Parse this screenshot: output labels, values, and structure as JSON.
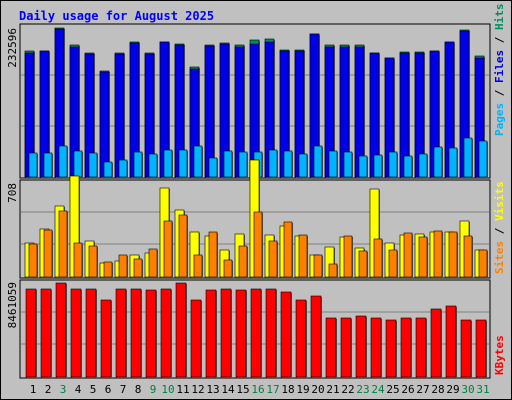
{
  "chart_data": [
    {
      "type": "bar",
      "title": "Daily usage for August 2025",
      "y_tick_label": "232596",
      "legend": {
        "pages": "Pages",
        "files": "Files",
        "hits": "Hits",
        "separator": " / "
      },
      "categories": [
        "1",
        "2",
        "3",
        "4",
        "5",
        "6",
        "7",
        "8",
        "9",
        "10",
        "11",
        "12",
        "13",
        "14",
        "15",
        "16",
        "17",
        "18",
        "19",
        "20",
        "21",
        "22",
        "23",
        "24",
        "25",
        "26",
        "27",
        "28",
        "29",
        "30",
        "31"
      ],
      "weekend_days": [
        "3",
        "9",
        "10",
        "16",
        "17",
        "23",
        "24",
        "30",
        "31"
      ],
      "series": [
        {
          "name": "Hits",
          "values": [
            195000,
            196000,
            231000,
            204000,
            192000,
            164000,
            192000,
            209000,
            193000,
            210000,
            206000,
            170000,
            205000,
            208000,
            204000,
            212000,
            214000,
            197000,
            197000,
            222000,
            204000,
            205000,
            204000,
            193000,
            185000,
            194000,
            194000,
            196000,
            210000,
            228000,
            187000
          ]
        },
        {
          "name": "Files",
          "values": [
            193000,
            195000,
            230000,
            202000,
            191000,
            163000,
            191000,
            208000,
            191000,
            209000,
            205000,
            168000,
            203000,
            206000,
            202000,
            206000,
            209000,
            195000,
            195000,
            221000,
            202000,
            201000,
            201000,
            192000,
            184000,
            193000,
            193000,
            195000,
            209000,
            227000,
            185000
          ]
        },
        {
          "name": "Pages",
          "values": [
            37000,
            37000,
            48000,
            41000,
            37000,
            23000,
            26000,
            39000,
            36000,
            42000,
            42000,
            48000,
            29000,
            40000,
            38000,
            38000,
            42000,
            41000,
            35000,
            48000,
            41000,
            39000,
            33000,
            34000,
            39000,
            33000,
            36000,
            46000,
            45000,
            60000,
            56000
          ]
        }
      ],
      "colors": {
        "Hits": "#009060",
        "Files": "#0000e6",
        "Pages": "#00b4ff"
      }
    },
    {
      "type": "bar",
      "y_tick_label": "708",
      "legend": {
        "sites": "Sites",
        "visits": "Visits",
        "separator": " / "
      },
      "categories": [
        "1",
        "2",
        "3",
        "4",
        "5",
        "6",
        "7",
        "8",
        "9",
        "10",
        "11",
        "12",
        "13",
        "14",
        "15",
        "16",
        "17",
        "18",
        "19",
        "20",
        "21",
        "22",
        "23",
        "24",
        "25",
        "26",
        "27",
        "28",
        "29",
        "30",
        "31"
      ],
      "series": [
        {
          "name": "Visits",
          "values": [
            253,
            365,
            537,
            761,
            268,
            108,
            117,
            168,
            184,
            668,
            503,
            342,
            311,
            204,
            322,
            884,
            319,
            386,
            309,
            166,
            223,
            301,
            221,
            664,
            259,
            320,
            322,
            340,
            340,
            425,
            203
          ]
        },
        {
          "name": "Sites",
          "values": [
            247,
            351,
            500,
            256,
            230,
            111,
            165,
            134,
            210,
            422,
            470,
            162,
            336,
            129,
            230,
            491,
            270,
            414,
            319,
            166,
            95,
            310,
            197,
            288,
            205,
            335,
            304,
            345,
            340,
            310,
            200
          ]
        }
      ],
      "colors": {
        "Visits": "#ffff00",
        "Sites": "#ff8000"
      }
    },
    {
      "type": "bar",
      "y_tick_label": "8461059",
      "legend": {
        "kbytes": "KBytes"
      },
      "categories": [
        "1",
        "2",
        "3",
        "4",
        "5",
        "6",
        "7",
        "8",
        "9",
        "10",
        "11",
        "12",
        "13",
        "14",
        "15",
        "16",
        "17",
        "18",
        "19",
        "20",
        "21",
        "22",
        "23",
        "24",
        "25",
        "26",
        "27",
        "28",
        "29",
        "30",
        "31"
      ],
      "series": [
        {
          "name": "KBytes",
          "values": [
            7950000,
            7950000,
            8440000,
            7950000,
            7950000,
            6970000,
            7950000,
            7950000,
            7810000,
            7950000,
            8440000,
            6970000,
            7810000,
            7950000,
            7810000,
            7950000,
            7950000,
            7690000,
            6970000,
            7300000,
            5320000,
            5320000,
            5500000,
            5320000,
            5110000,
            5320000,
            5320000,
            6120000,
            6380000,
            5110000,
            5110000
          ]
        }
      ],
      "colors": {
        "KBytes": "#ff0000"
      }
    }
  ],
  "ui": {
    "frame_bg": "#c0c0c0",
    "title_color": "#0000ff",
    "axis_label_color": "#000000",
    "day_label_color": "#000000",
    "weekend_label_color": "#008040"
  }
}
